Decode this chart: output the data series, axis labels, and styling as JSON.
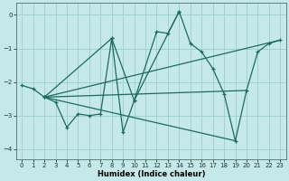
{
  "xlabel": "Humidex (Indice chaleur)",
  "xlim": [
    -0.5,
    23.5
  ],
  "ylim": [
    -4.3,
    0.35
  ],
  "xticks": [
    0,
    1,
    2,
    3,
    4,
    5,
    6,
    7,
    8,
    9,
    10,
    11,
    12,
    13,
    14,
    15,
    16,
    17,
    18,
    19,
    20,
    21,
    22,
    23
  ],
  "yticks": [
    0,
    -1,
    -2,
    -3,
    -4
  ],
  "bg_color": "#c5e8e8",
  "grid_color": "#9ecece",
  "line_color": "#1d6b5e",
  "lines": [
    {
      "x": [
        0,
        1,
        2,
        3,
        4,
        5,
        6,
        7,
        8,
        9,
        10,
        14,
        15,
        16,
        17,
        18,
        19,
        20,
        21,
        22,
        23
      ],
      "y": [
        -2.1,
        -2.2,
        -2.45,
        -2.6,
        -3.35,
        -2.95,
        -3.0,
        -2.95,
        -0.7,
        -3.5,
        -2.55,
        0.1,
        -0.85,
        -1.1,
        -1.6,
        -2.35,
        -3.75,
        -2.25,
        -1.1,
        -0.85,
        -0.75
      ]
    },
    {
      "x": [
        2,
        8,
        10,
        12,
        13,
        14
      ],
      "y": [
        -2.45,
        -0.7,
        -2.55,
        -0.5,
        -0.55,
        0.1
      ]
    },
    {
      "x": [
        2,
        23
      ],
      "y": [
        -2.45,
        -0.75
      ]
    },
    {
      "x": [
        2,
        19
      ],
      "y": [
        -2.45,
        -3.75
      ]
    },
    {
      "x": [
        2,
        20
      ],
      "y": [
        -2.45,
        -2.25
      ]
    }
  ]
}
